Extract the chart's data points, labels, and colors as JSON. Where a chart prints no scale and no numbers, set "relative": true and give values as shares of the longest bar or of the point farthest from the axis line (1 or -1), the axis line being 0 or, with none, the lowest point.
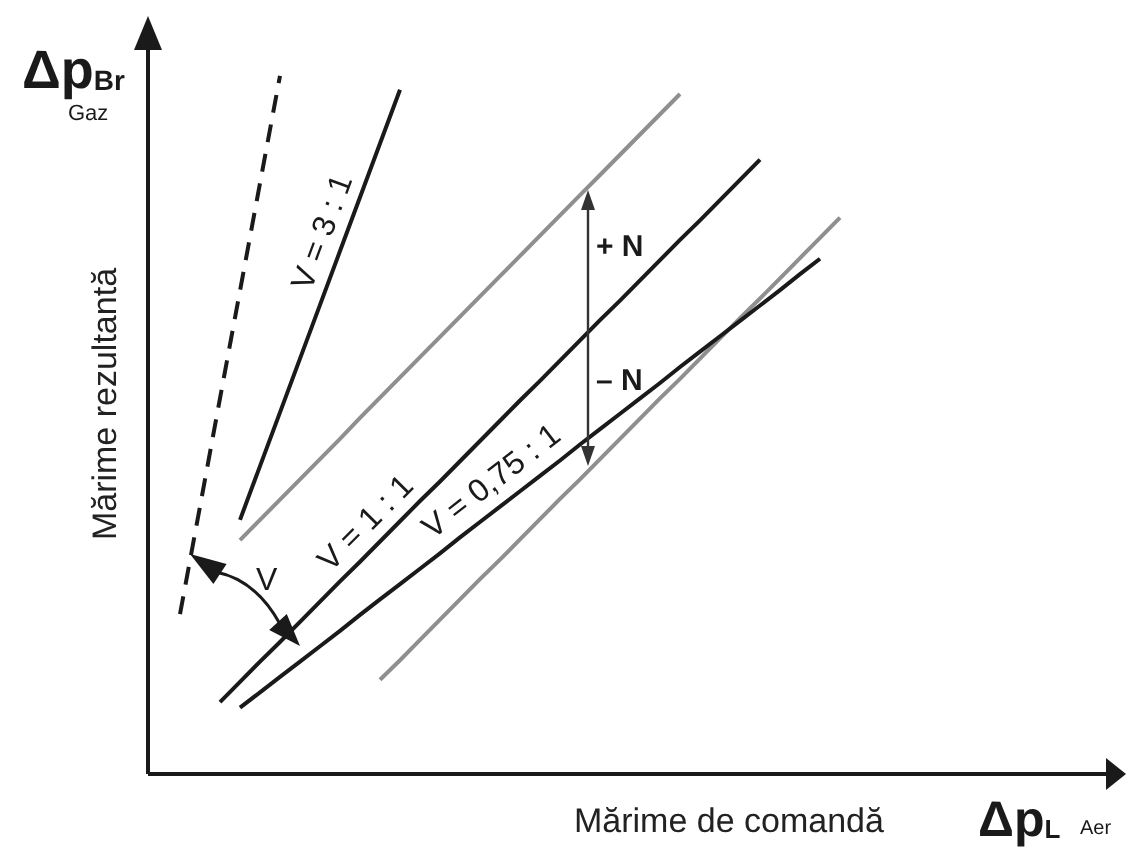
{
  "chart_data": {
    "type": "line",
    "relative": true,
    "line_style": "solid",
    "xlabel": "Mărime de comandă",
    "ylabel": "Mărime rezultantă",
    "annotations": [
      "+ N",
      "– N",
      "V",
      "Δp$_{Br}$",
      "Gaz",
      "Δp$_{L}$",
      "Aer"
    ],
    "categories": [
      null,
      null,
      null,
      null,
      null,
      null,
      null,
      null,
      null,
      null,
      null,
      null,
      null,
      null,
      null,
      null,
      null,
      null,
      null,
      null,
      null,
      null,
      null,
      null,
      null,
      null,
      null,
      null,
      null,
      null,
      null,
      null,
      null,
      null,
      null,
      null,
      null,
      null,
      null,
      null,
      null,
      null,
      null,
      null,
      null,
      null,
      null,
      null
    ],
    "series": [
      {
        "color": "#1a1a1a",
        "line_style": "dashed",
        "values": [
          null,
          0.229,
          0.383,
          0.538,
          0.692,
          0.846,
          1,
          null,
          null,
          null,
          null,
          null,
          null,
          null,
          null,
          null,
          null,
          null,
          null,
          null,
          null,
          null,
          null,
          null,
          null,
          null,
          null,
          null,
          null,
          null,
          null,
          null,
          null,
          null,
          null,
          null,
          null,
          null,
          null,
          null,
          null,
          null,
          null,
          null,
          null,
          null,
          null,
          null
        ]
      },
      {
        "name": "V = 3 : 1",
        "color": "#1a1a1a",
        "values": [
          null,
          null,
          null,
          null,
          0.364,
          0.441,
          0.518,
          0.595,
          0.672,
          0.749,
          0.826,
          0.903,
          0.98,
          null,
          null,
          null,
          null,
          null,
          null,
          null,
          null,
          null,
          null,
          null,
          null,
          null,
          null,
          null,
          null,
          null,
          null,
          null,
          null,
          null,
          null,
          null,
          null,
          null,
          null,
          null,
          null,
          null,
          null,
          null,
          null,
          null,
          null,
          null
        ]
      },
      {
        "color": "#8f8f8f",
        "values": [
          null,
          null,
          null,
          null,
          0.335,
          0.364,
          0.393,
          0.422,
          0.451,
          0.48,
          0.51,
          0.539,
          0.568,
          0.597,
          0.626,
          0.655,
          0.684,
          0.713,
          0.742,
          0.771,
          0.8,
          0.829,
          0.858,
          0.887,
          0.916,
          0.945,
          0.974,
          null,
          null,
          null,
          null,
          null,
          null,
          null,
          null,
          null,
          null,
          null,
          null,
          null,
          null,
          null,
          null,
          null,
          null,
          null,
          null,
          null
        ]
      },
      {
        "name": "V = 1 : 1",
        "color": "#1a1a1a",
        "values": [
          null,
          null,
          null,
          0.103,
          0.132,
          0.161,
          0.189,
          0.218,
          0.247,
          0.276,
          0.304,
          0.333,
          0.362,
          0.391,
          0.419,
          0.448,
          0.477,
          0.506,
          0.535,
          0.563,
          0.592,
          0.621,
          0.65,
          0.678,
          0.707,
          0.736,
          0.765,
          0.793,
          0.822,
          0.851,
          0.88,
          null,
          null,
          null,
          null,
          null,
          null,
          null,
          null,
          null,
          null,
          null,
          null,
          null,
          null,
          null,
          null,
          null
        ]
      },
      {
        "color": "#8f8f8f",
        "values": [
          null,
          null,
          null,
          null,
          null,
          null,
          null,
          null,
          null,
          null,
          null,
          0.135,
          0.163,
          0.192,
          0.221,
          0.25,
          0.279,
          0.307,
          0.336,
          0.365,
          0.394,
          0.422,
          0.451,
          0.48,
          0.509,
          0.538,
          0.566,
          0.595,
          0.624,
          0.653,
          0.681,
          0.71,
          0.739,
          0.768,
          0.797,
          null,
          null,
          null,
          null,
          null,
          null,
          null,
          null,
          null,
          null,
          null,
          null,
          null
        ]
      },
      {
        "name": "V = 0,75 : 1",
        "color": "#1a1a1a",
        "values": [
          null,
          null,
          null,
          null,
          0.095,
          0.117,
          0.139,
          0.161,
          0.183,
          0.205,
          0.228,
          0.25,
          0.272,
          0.294,
          0.316,
          0.339,
          0.361,
          0.383,
          0.405,
          0.427,
          0.449,
          0.472,
          0.494,
          0.516,
          0.538,
          0.56,
          0.583,
          0.605,
          0.627,
          0.649,
          0.671,
          0.693,
          0.716,
          0.738,
          null,
          null,
          null,
          null,
          null,
          null,
          null,
          null,
          null,
          null,
          null,
          null,
          null,
          null
        ]
      }
    ]
  }
}
